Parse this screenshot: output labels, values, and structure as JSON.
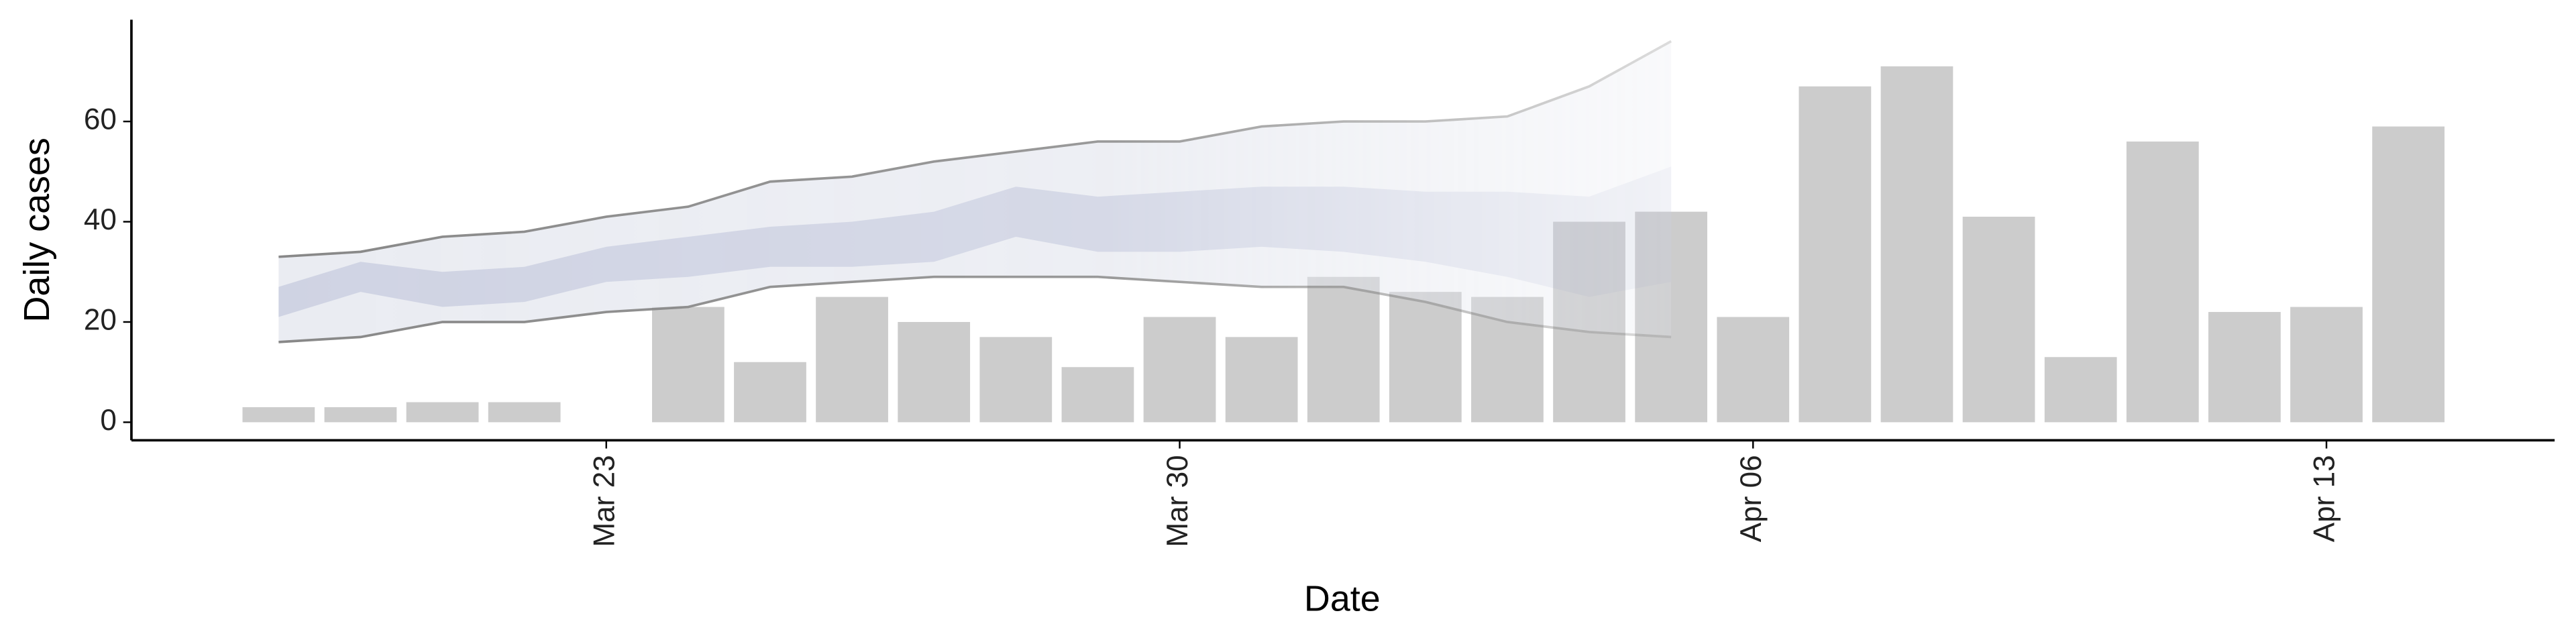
{
  "chart_data": {
    "type": "bar",
    "x_label": "Date",
    "y_label": "Daily cases",
    "categories": [
      null,
      null,
      null,
      null,
      "Mar 23",
      null,
      null,
      null,
      null,
      null,
      null,
      "Mar 30",
      null,
      null,
      null,
      null,
      null,
      null,
      "Apr 06",
      null,
      null,
      null,
      null,
      null,
      null,
      "Apr 13",
      null
    ],
    "values": [
      3,
      3,
      4,
      4,
      null,
      23,
      12,
      25,
      20,
      17,
      11,
      21,
      17,
      29,
      26,
      25,
      40,
      42,
      21,
      67,
      71,
      41,
      13,
      56,
      22,
      23,
      59
    ],
    "color": "#cccccc",
    "outer_upper": [
      33,
      34,
      37,
      38,
      41,
      43,
      48,
      49,
      52,
      54,
      56,
      56,
      59,
      60,
      60,
      61,
      67,
      76,
      null,
      null,
      null,
      null,
      null,
      null,
      null,
      null,
      null
    ],
    "outer_lower": [
      16,
      17,
      20,
      20,
      22,
      23,
      27,
      28,
      29,
      29,
      29,
      28,
      27,
      27,
      24,
      20,
      18,
      17,
      null,
      null,
      null,
      null,
      null,
      null,
      null,
      null,
      null
    ],
    "inner_upper": [
      27,
      32,
      30,
      31,
      35,
      37,
      39,
      40,
      42,
      47,
      45,
      46,
      47,
      47,
      46,
      46,
      45,
      51,
      null,
      null,
      null,
      null,
      null,
      null,
      null,
      null,
      null
    ],
    "inner_lower": [
      21,
      26,
      23,
      24,
      28,
      29,
      31,
      31,
      32,
      37,
      34,
      34,
      35,
      34,
      32,
      29,
      25,
      28,
      null,
      null,
      null,
      null,
      null,
      null,
      null,
      null,
      null
    ],
    "outer_color": "#e3e6ee",
    "inner_color": "#c3c9dd",
    "line_color": "#888888",
    "ylim": [
      -3.6,
      80.3
    ],
    "yticks": [
      0,
      20,
      40,
      60
    ]
  }
}
